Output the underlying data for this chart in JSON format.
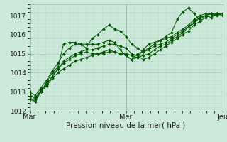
{
  "title": "Pression niveau de la mer( hPa )",
  "bg_color": "#cce8d8",
  "grid_color_major": "#aaccbb",
  "grid_color_minor": "#bbddcc",
  "line_color": "#005500",
  "marker_color": "#005500",
  "ylim": [
    1012,
    1017.6
  ],
  "yticks": [
    1012,
    1013,
    1014,
    1015,
    1016,
    1017
  ],
  "xlim": [
    0,
    48
  ],
  "xtick_positions": [
    0,
    24,
    48
  ],
  "xtick_labels": [
    "Mar",
    "Mer",
    "Jeu"
  ],
  "series": [
    [
      1012.8,
      1012.7,
      1013.0,
      1013.5,
      1014.0,
      1014.3,
      1015.5,
      1015.6,
      1015.6,
      1015.5,
      1015.3,
      1015.8,
      1016.0,
      1016.3,
      1016.5,
      1016.3,
      1016.2,
      1015.9,
      1015.5,
      1015.3,
      1015.1,
      1015.2,
      1015.4,
      1015.5,
      1015.6,
      1015.8,
      1016.0,
      1016.2,
      1016.4,
      1016.7,
      1016.9,
      1017.0,
      1017.1,
      1017.0,
      1017.1
    ],
    [
      1013.0,
      1012.8,
      1013.2,
      1013.6,
      1014.1,
      1014.5,
      1015.0,
      1015.3,
      1015.5,
      1015.5,
      1015.5,
      1015.5,
      1015.5,
      1015.6,
      1015.7,
      1015.6,
      1015.2,
      1014.9,
      1014.7,
      1014.8,
      1015.2,
      1015.5,
      1015.6,
      1015.7,
      1015.8,
      1015.9,
      1016.1,
      1016.3,
      1016.5,
      1016.8,
      1017.0,
      1017.1,
      1017.1,
      1017.1,
      1017.1
    ],
    [
      1012.6,
      1012.5,
      1013.0,
      1013.4,
      1013.8,
      1014.2,
      1014.6,
      1014.8,
      1015.0,
      1015.1,
      1015.2,
      1015.2,
      1015.3,
      1015.4,
      1015.5,
      1015.5,
      1015.4,
      1015.3,
      1015.0,
      1014.9,
      1014.7,
      1014.8,
      1015.0,
      1015.2,
      1015.4,
      1015.6,
      1015.8,
      1016.0,
      1016.2,
      1016.5,
      1016.7,
      1016.9,
      1017.0,
      1017.1,
      1017.1
    ],
    [
      1012.7,
      1012.5,
      1013.0,
      1013.3,
      1013.7,
      1014.0,
      1014.2,
      1014.4,
      1014.6,
      1014.7,
      1014.8,
      1014.9,
      1015.0,
      1015.0,
      1015.1,
      1015.1,
      1015.0,
      1015.0,
      1014.9,
      1014.8,
      1014.9,
      1015.0,
      1015.2,
      1015.4,
      1015.5,
      1015.7,
      1015.9,
      1016.1,
      1016.4,
      1016.6,
      1016.9,
      1017.0,
      1017.1,
      1017.1,
      1017.1
    ],
    [
      1012.9,
      1012.6,
      1013.1,
      1013.4,
      1013.8,
      1014.2,
      1014.5,
      1014.7,
      1014.9,
      1015.0,
      1015.1,
      1015.0,
      1015.0,
      1015.1,
      1015.2,
      1015.1,
      1015.0,
      1014.9,
      1014.7,
      1015.0,
      1015.1,
      1015.3,
      1015.5,
      1015.7,
      1015.9,
      1016.1,
      1016.8,
      1017.2,
      1017.4,
      1017.1,
      1016.8,
      1017.0,
      1016.9,
      1017.1,
      1017.0
    ]
  ]
}
